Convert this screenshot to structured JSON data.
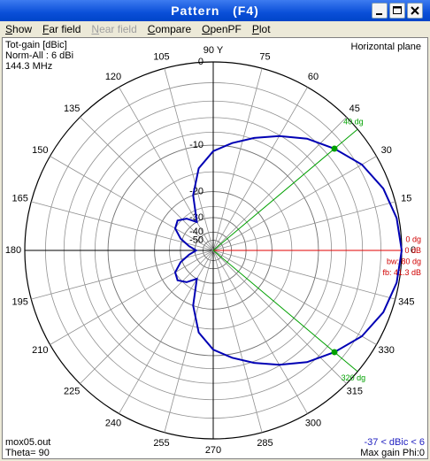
{
  "window": {
    "title": "Pattern   (F4)"
  },
  "menu": [
    "Show",
    "Far field",
    "Near field",
    "Compare",
    "OpenPF",
    "Plot"
  ],
  "info": {
    "top_left": [
      "Tot-gain [dBic]",
      "Norm-All : 6 dBi",
      "144.3 MHz"
    ],
    "top_right": "Horizontal plane",
    "bottom_left": [
      "mox05.out",
      "Theta= 90"
    ],
    "bottom_right": [
      "-37 < dBic < 6",
      "Max gain Phi:0"
    ]
  },
  "chart_data": {
    "type": "polar",
    "scale": "arrl-log",
    "color": "#0000b4",
    "angles": [
      0,
      10,
      20,
      30,
      40,
      50,
      60,
      70,
      80,
      90,
      100,
      110,
      120,
      130,
      140,
      150,
      160,
      170,
      180,
      190,
      200,
      210,
      220,
      230,
      240,
      250,
      260,
      270,
      280,
      290,
      300,
      310,
      320,
      330,
      340,
      350
    ],
    "values": [
      0,
      -0.2,
      -0.7,
      -1.6,
      -3,
      -4.4,
      -6.1,
      -7.8,
      -9.4,
      -11,
      -14,
      -20,
      -30,
      -26,
      -24,
      -25,
      -29,
      -35,
      -41.3,
      -35,
      -29,
      -25,
      -24,
      -26,
      -30,
      -20,
      -14,
      -11,
      -9.4,
      -7.8,
      -6.1,
      -4.4,
      -3,
      -1.6,
      -0.7,
      -0.2
    ],
    "rticks": [
      0,
      -10,
      -20,
      -30,
      -40,
      -50
    ],
    "minor_rticks": [
      -2,
      -4,
      -6,
      -8,
      -15,
      -25
    ],
    "angle_ticks": [
      0,
      15,
      30,
      45,
      60,
      75,
      {
        "value": 90,
        "label": "90 Y"
      },
      105,
      120,
      135,
      150,
      165,
      180,
      195,
      210,
      225,
      240,
      255,
      270,
      285,
      300,
      315,
      330,
      345
    ],
    "markers": [
      {
        "angle": 40,
        "label": "40 dg"
      },
      {
        "angle": 320,
        "label": "320 dg"
      }
    ],
    "main_direction": 0,
    "main_labels": [
      "0 dg",
      "0 dB",
      "bw: 80 dg",
      "fb: 41.3 dB"
    ]
  }
}
